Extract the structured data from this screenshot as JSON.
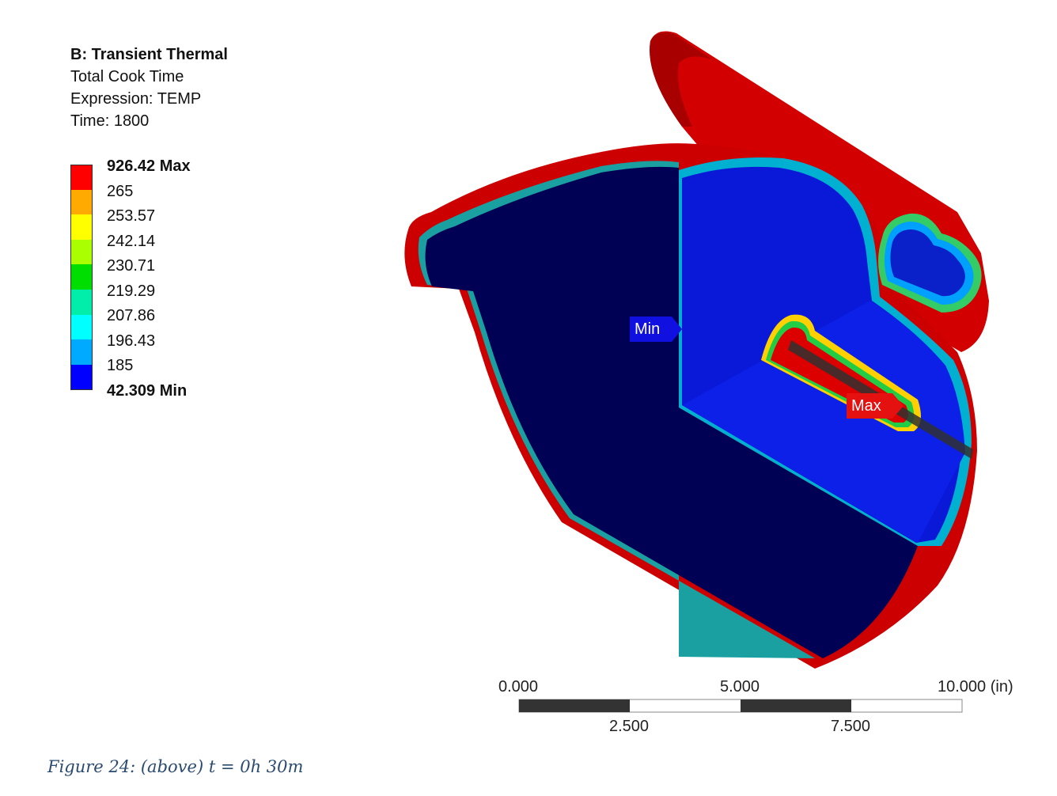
{
  "header": {
    "title": "B: Transient Thermal",
    "subtitle": "Total Cook Time",
    "expression": "Expression: TEMP",
    "time": "Time: 1800"
  },
  "legend": {
    "max_label": "926.42 Max",
    "min_label": "42.309 Min",
    "levels": [
      "265",
      "253.57",
      "242.14",
      "230.71",
      "219.29",
      "207.86",
      "196.43",
      "185"
    ],
    "colors": [
      "#ff0000",
      "#ffaa00",
      "#ffff00",
      "#aaff00",
      "#00dd00",
      "#00eeaa",
      "#00ffff",
      "#00aaff",
      "#0000ff"
    ]
  },
  "markers": {
    "min": "Min",
    "max": "Max",
    "min_color": "#1010e0",
    "max_color": "#e51010"
  },
  "scale_bar": {
    "top_labels": [
      "0.000",
      "5.000",
      "10.000 (in)"
    ],
    "bottom_labels": [
      "2.500",
      "7.500"
    ]
  },
  "caption": "Figure 24: (above) t = 0h 30m"
}
